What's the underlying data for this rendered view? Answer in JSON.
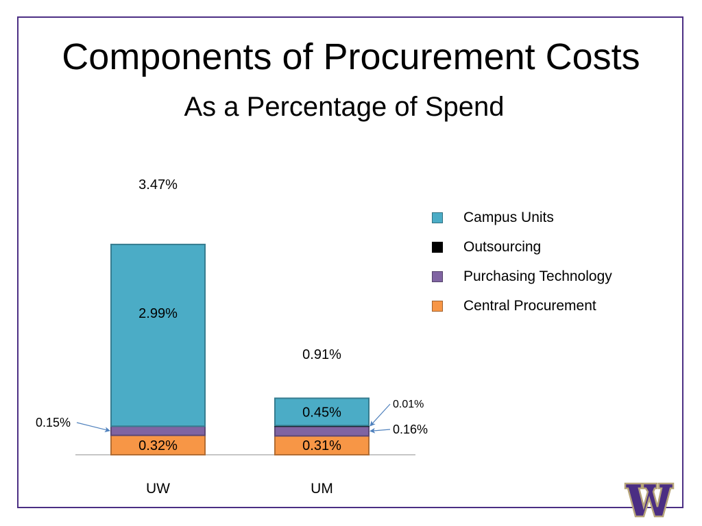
{
  "slide": {
    "title": "Components of Procurement Costs",
    "subtitle": "As a Percentage of Spend"
  },
  "chart_data": {
    "type": "bar",
    "stacked": true,
    "categories": [
      "UW",
      "UM"
    ],
    "series": [
      {
        "name": "Central Procurement",
        "values": [
          0.32,
          0.31
        ],
        "color": "#f79646",
        "labels": [
          "0.32%",
          "0.31%"
        ]
      },
      {
        "name": "Purchasing Technology",
        "values": [
          0.15,
          0.16
        ],
        "color": "#8064a2",
        "labels": [
          "0.15%",
          "0.16%"
        ]
      },
      {
        "name": "Outsourcing",
        "values": [
          0.0,
          0.01
        ],
        "color": "#000000",
        "labels": [
          "",
          "0.01%"
        ]
      },
      {
        "name": "Campus Units",
        "values": [
          2.99,
          0.45
        ],
        "color": "#4bacc6",
        "labels": [
          "2.99%",
          "0.45%"
        ]
      }
    ],
    "totals": [
      "3.47%",
      "0.91%"
    ],
    "legend_order": [
      "Campus Units",
      "Outsourcing",
      "Purchasing Technology",
      "Central Procurement"
    ],
    "legend_position": "top-right",
    "grid": false,
    "unit": "%"
  },
  "logo": {
    "icon": "uw-w-logo-icon",
    "color": "#4b2e83"
  }
}
